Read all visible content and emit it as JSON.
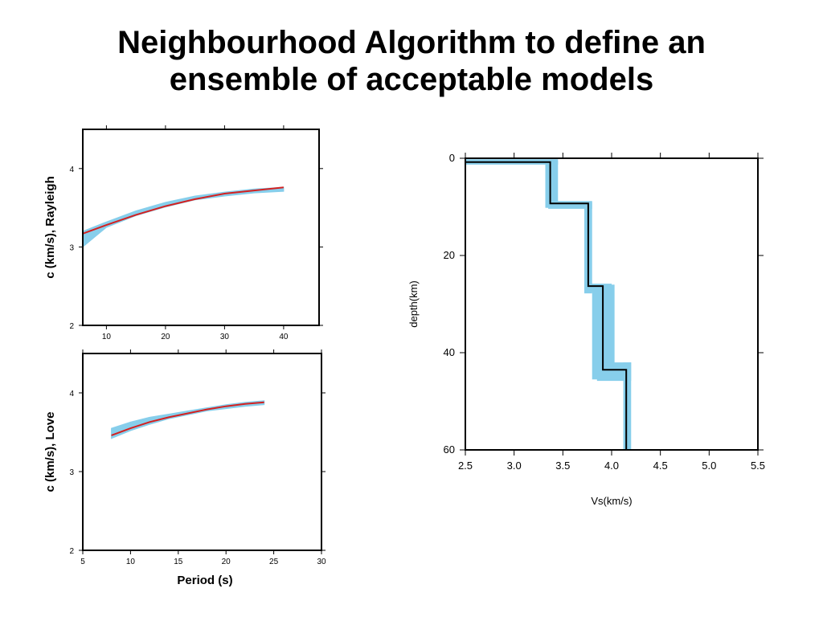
{
  "slide": {
    "title_line1": "Neighbourhood Algorithm to define an",
    "title_line2": "ensemble of acceptable models"
  },
  "colors": {
    "ensemble": "#87ceeb",
    "best_fit": "#d42020",
    "profile": "#000000",
    "frame": "#000000"
  },
  "chart_data": [
    {
      "id": "rayleigh",
      "type": "line",
      "title": "",
      "xlabel": "",
      "ylabel": "c (km/s), Rayleigh",
      "xlim": [
        6,
        46
      ],
      "ylim": [
        2,
        4.5
      ],
      "xticks": [
        10,
        20,
        30,
        40
      ],
      "yticks": [
        2,
        3,
        4
      ],
      "grid": false,
      "series": [
        {
          "role": "ensemble-band",
          "x": [
            6,
            10,
            15,
            20,
            25,
            30,
            35,
            40
          ],
          "lower": [
            3.0,
            3.25,
            3.4,
            3.51,
            3.6,
            3.65,
            3.69,
            3.71
          ],
          "upper": [
            3.2,
            3.32,
            3.46,
            3.57,
            3.65,
            3.7,
            3.74,
            3.76
          ]
        },
        {
          "role": "best-fit",
          "x": [
            6,
            10,
            15,
            20,
            25,
            30,
            35,
            40
          ],
          "y": [
            3.17,
            3.28,
            3.41,
            3.52,
            3.61,
            3.68,
            3.72,
            3.76
          ]
        }
      ]
    },
    {
      "id": "love",
      "type": "line",
      "title": "",
      "xlabel": "Period (s)",
      "ylabel": "c (km/s), Love",
      "xlim": [
        5,
        30
      ],
      "ylim": [
        2,
        4.5
      ],
      "xticks": [
        5,
        10,
        15,
        20,
        25,
        30
      ],
      "yticks": [
        2,
        3,
        4
      ],
      "grid": false,
      "series": [
        {
          "role": "ensemble-band",
          "x": [
            8,
            10,
            12,
            14,
            16,
            18,
            20,
            22,
            24
          ],
          "lower": [
            3.42,
            3.52,
            3.6,
            3.67,
            3.72,
            3.77,
            3.8,
            3.83,
            3.85
          ],
          "upper": [
            3.55,
            3.63,
            3.69,
            3.73,
            3.77,
            3.81,
            3.85,
            3.88,
            3.9
          ]
        },
        {
          "role": "best-fit",
          "x": [
            8,
            10,
            12,
            14,
            16,
            18,
            20,
            22,
            24
          ],
          "y": [
            3.46,
            3.55,
            3.63,
            3.69,
            3.74,
            3.79,
            3.83,
            3.86,
            3.88
          ]
        }
      ]
    },
    {
      "id": "velocity-profile",
      "type": "line",
      "title": "",
      "xlabel": "Vs(km/s)",
      "ylabel": "depth(km)",
      "xlim": [
        2.5,
        5.5
      ],
      "ylim": [
        0,
        60
      ],
      "y_inverted": true,
      "xticks": [
        "2.5",
        "3.0",
        "3.5",
        "4.0",
        "4.5",
        "5.0",
        "5.5"
      ],
      "yticks": [
        0,
        20,
        40,
        60
      ],
      "grid": false,
      "series": [
        {
          "role": "ensemble-band",
          "rects": [
            {
              "x0": 2.5,
              "x1": 3.45,
              "y0": 0.2,
              "y1": 1.3
            },
            {
              "x0": 3.32,
              "x1": 3.45,
              "y0": 0.5,
              "y1": 10.2
            },
            {
              "x0": 3.35,
              "x1": 3.8,
              "y0": 8.8,
              "y1": 10.4
            },
            {
              "x0": 3.72,
              "x1": 3.8,
              "y0": 9.0,
              "y1": 27.8
            },
            {
              "x0": 3.72,
              "x1": 4.0,
              "y0": 25.8,
              "y1": 27.5
            },
            {
              "x0": 3.8,
              "x1": 4.03,
              "y0": 26.0,
              "y1": 45.5
            },
            {
              "x0": 3.85,
              "x1": 4.2,
              "y0": 42.0,
              "y1": 45.8
            },
            {
              "x0": 4.12,
              "x1": 4.2,
              "y0": 42.0,
              "y1": 60
            }
          ]
        },
        {
          "role": "best-fit",
          "x": [
            2.5,
            3.37,
            3.37,
            3.76,
            3.76,
            3.91,
            3.91,
            4.15,
            4.15
          ],
          "y": [
            0.8,
            0.8,
            9.3,
            9.3,
            26.3,
            26.3,
            43.5,
            43.5,
            60
          ]
        }
      ]
    }
  ]
}
